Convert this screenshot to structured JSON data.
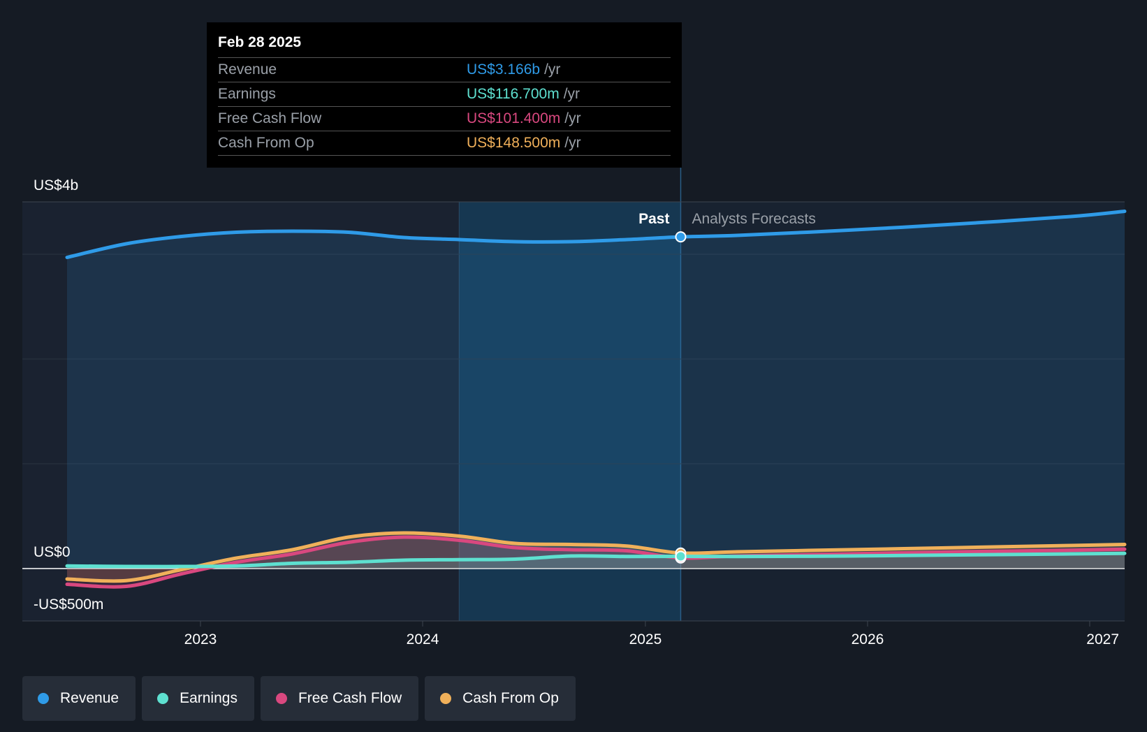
{
  "tooltip": {
    "date": "Feb 28 2025",
    "rows": [
      {
        "label": "Revenue",
        "value": "US$3.166b",
        "unit": "/yr",
        "color": "#2f9be8"
      },
      {
        "label": "Earnings",
        "value": "US$116.700m",
        "unit": "/yr",
        "color": "#5ee0d0"
      },
      {
        "label": "Free Cash Flow",
        "value": "US$101.400m",
        "unit": "/yr",
        "color": "#d9487f"
      },
      {
        "label": "Cash From Op",
        "value": "US$148.500m",
        "unit": "/yr",
        "color": "#f0b05a"
      }
    ]
  },
  "legend": [
    {
      "label": "Revenue",
      "color": "#2f9be8"
    },
    {
      "label": "Earnings",
      "color": "#5ee0d0"
    },
    {
      "label": "Free Cash Flow",
      "color": "#d9487f"
    },
    {
      "label": "Cash From Op",
      "color": "#f0b05a"
    }
  ],
  "chart_data": {
    "type": "area",
    "y_unit": "US$ millions",
    "ylim": [
      -500,
      3500
    ],
    "y_tick_labels": [
      {
        "value": 3500,
        "label": "US$4b"
      },
      {
        "value": 0,
        "label": "US$0"
      },
      {
        "value": -500,
        "label": "-US$500m"
      }
    ],
    "x_ticks": [
      "2023",
      "2024",
      "2025",
      "2026",
      "2027"
    ],
    "xlim": [
      "2022-06-01",
      "2027-03-01"
    ],
    "past_label": "Past",
    "forecast_label": "Analysts Forecasts",
    "highlight_start": "2024-03-01",
    "divider_date": "2025-02-28",
    "series": [
      {
        "name": "Revenue",
        "color": "#2f9be8",
        "x": [
          "2022-06-01",
          "2022-09-01",
          "2022-12-01",
          "2023-03-01",
          "2023-06-01",
          "2023-09-01",
          "2023-12-01",
          "2024-03-01",
          "2024-06-01",
          "2024-09-01",
          "2024-12-01",
          "2025-02-28",
          "2025-06-01",
          "2025-12-01",
          "2026-06-01",
          "2026-12-01",
          "2027-03-01"
        ],
        "values": [
          2970,
          3100,
          3170,
          3210,
          3220,
          3210,
          3160,
          3140,
          3120,
          3120,
          3140,
          3166,
          3180,
          3230,
          3290,
          3360,
          3410
        ]
      },
      {
        "name": "Earnings",
        "color": "#5ee0d0",
        "x": [
          "2022-06-01",
          "2022-09-01",
          "2022-12-01",
          "2023-03-01",
          "2023-06-01",
          "2023-09-01",
          "2023-12-01",
          "2024-03-01",
          "2024-06-01",
          "2024-09-01",
          "2024-12-01",
          "2025-02-28",
          "2025-06-01",
          "2025-12-01",
          "2026-06-01",
          "2026-12-01",
          "2027-03-01"
        ],
        "values": [
          25,
          20,
          20,
          25,
          50,
          60,
          80,
          85,
          90,
          120,
          115,
          116.7,
          115,
          120,
          130,
          140,
          145
        ]
      },
      {
        "name": "Free Cash Flow",
        "color": "#d9487f",
        "x": [
          "2022-06-01",
          "2022-09-01",
          "2022-12-01",
          "2023-03-01",
          "2023-06-01",
          "2023-09-01",
          "2023-12-01",
          "2024-03-01",
          "2024-06-01",
          "2024-09-01",
          "2024-12-01",
          "2025-02-28",
          "2025-06-01",
          "2025-12-01",
          "2026-06-01",
          "2026-12-01",
          "2027-03-01"
        ],
        "values": [
          -150,
          -170,
          -50,
          60,
          140,
          250,
          300,
          270,
          200,
          180,
          170,
          101.4,
          120,
          140,
          160,
          175,
          185
        ]
      },
      {
        "name": "Cash From Op",
        "color": "#f0b05a",
        "x": [
          "2022-06-01",
          "2022-09-01",
          "2022-12-01",
          "2023-03-01",
          "2023-06-01",
          "2023-09-01",
          "2023-12-01",
          "2024-03-01",
          "2024-06-01",
          "2024-09-01",
          "2024-12-01",
          "2025-02-28",
          "2025-06-01",
          "2025-12-01",
          "2026-06-01",
          "2026-12-01",
          "2027-03-01"
        ],
        "values": [
          -100,
          -115,
          -10,
          100,
          180,
          300,
          340,
          310,
          240,
          230,
          215,
          148.5,
          160,
          180,
          200,
          220,
          230
        ]
      }
    ]
  }
}
